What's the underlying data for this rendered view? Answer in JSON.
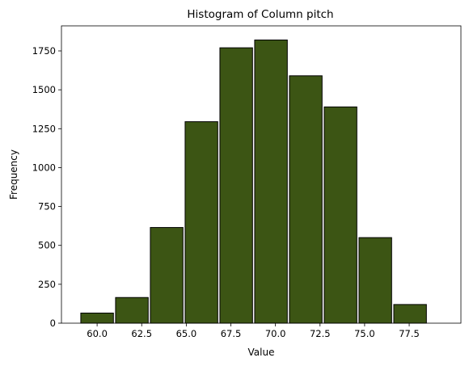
{
  "chart_data": {
    "type": "bar",
    "title": "Histogram of Column pitch",
    "xlabel": "Value",
    "ylabel": "Frequency",
    "xlim": [
      58.0,
      80.4
    ],
    "ylim": [
      0,
      1911
    ],
    "grid": false,
    "bar_color": "#3c5514",
    "edge_color": "#000000",
    "bin_width": 1.83,
    "bins": [
      {
        "x": 60.0,
        "value": 65
      },
      {
        "x": 61.95,
        "value": 165
      },
      {
        "x": 63.9,
        "value": 615
      },
      {
        "x": 65.85,
        "value": 1295
      },
      {
        "x": 67.8,
        "value": 1770
      },
      {
        "x": 69.75,
        "value": 1820
      },
      {
        "x": 71.7,
        "value": 1590
      },
      {
        "x": 73.65,
        "value": 1390
      },
      {
        "x": 75.6,
        "value": 550
      },
      {
        "x": 77.55,
        "value": 120
      }
    ],
    "x_ticks": [
      {
        "value": 60.0,
        "label": "60.0"
      },
      {
        "value": 62.5,
        "label": "62.5"
      },
      {
        "value": 65.0,
        "label": "65.0"
      },
      {
        "value": 67.5,
        "label": "67.5"
      },
      {
        "value": 70.0,
        "label": "70.0"
      },
      {
        "value": 72.5,
        "label": "72.5"
      },
      {
        "value": 75.0,
        "label": "75.0"
      },
      {
        "value": 77.5,
        "label": "77.5"
      }
    ],
    "y_ticks": [
      {
        "value": 0,
        "label": "0"
      },
      {
        "value": 250,
        "label": "250"
      },
      {
        "value": 500,
        "label": "500"
      },
      {
        "value": 750,
        "label": "750"
      },
      {
        "value": 1000,
        "label": "1000"
      },
      {
        "value": 1250,
        "label": "1250"
      },
      {
        "value": 1500,
        "label": "1500"
      },
      {
        "value": 1750,
        "label": "1750"
      }
    ]
  }
}
